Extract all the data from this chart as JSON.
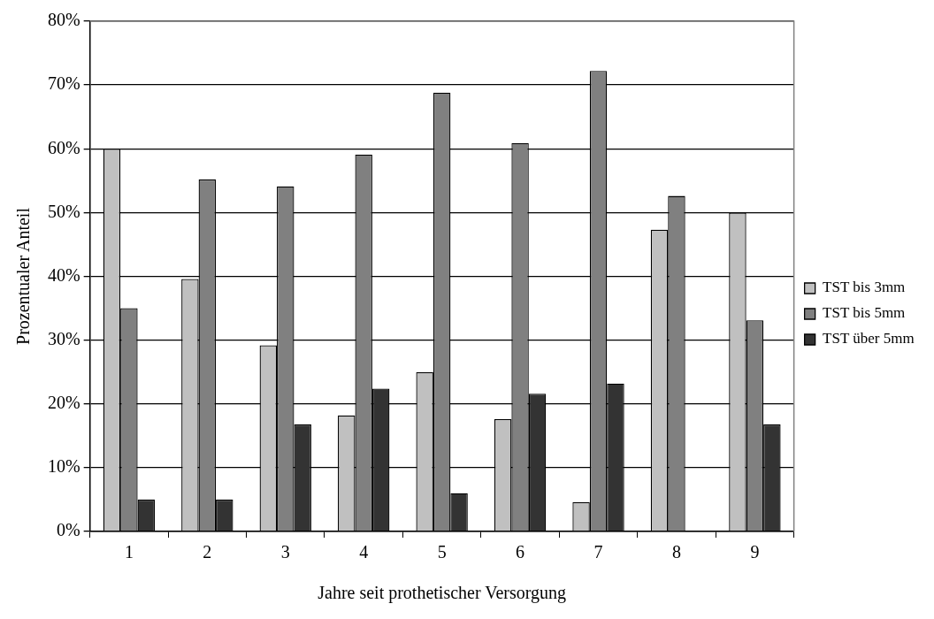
{
  "chart_data": {
    "type": "bar",
    "xlabel": "Jahre seit prothetischer Versorgung",
    "ylabel": "Prozentualer Anteil",
    "categories": [
      "1",
      "2",
      "3",
      "4",
      "5",
      "6",
      "7",
      "8",
      "9"
    ],
    "series": [
      {
        "name": "TST bis 3mm",
        "color": "#c0c0c0",
        "values": [
          60,
          39.6,
          29.2,
          18.2,
          25,
          17.6,
          4.6,
          47.3,
          50
        ]
      },
      {
        "name": "TST bis 5mm",
        "color": "#808080",
        "values": [
          35,
          55.2,
          54.1,
          59.1,
          68.8,
          60.9,
          72.2,
          52.6,
          33.1
        ]
      },
      {
        "name": "TST über 5mm",
        "color": "#333333",
        "values": [
          5,
          5,
          16.8,
          22.4,
          6,
          21.6,
          23.2,
          0,
          16.8
        ]
      }
    ],
    "ylim": [
      0,
      80
    ],
    "yticks": [
      {
        "value": 0,
        "label": "0%"
      },
      {
        "value": 10,
        "label": "10%"
      },
      {
        "value": 20,
        "label": "20%"
      },
      {
        "value": 30,
        "label": "30%"
      },
      {
        "value": 40,
        "label": "40%"
      },
      {
        "value": 50,
        "label": "50%"
      },
      {
        "value": 60,
        "label": "60%"
      },
      {
        "value": 70,
        "label": "70%"
      },
      {
        "value": 80,
        "label": "80%"
      }
    ],
    "grid": "y",
    "legend": "right"
  }
}
